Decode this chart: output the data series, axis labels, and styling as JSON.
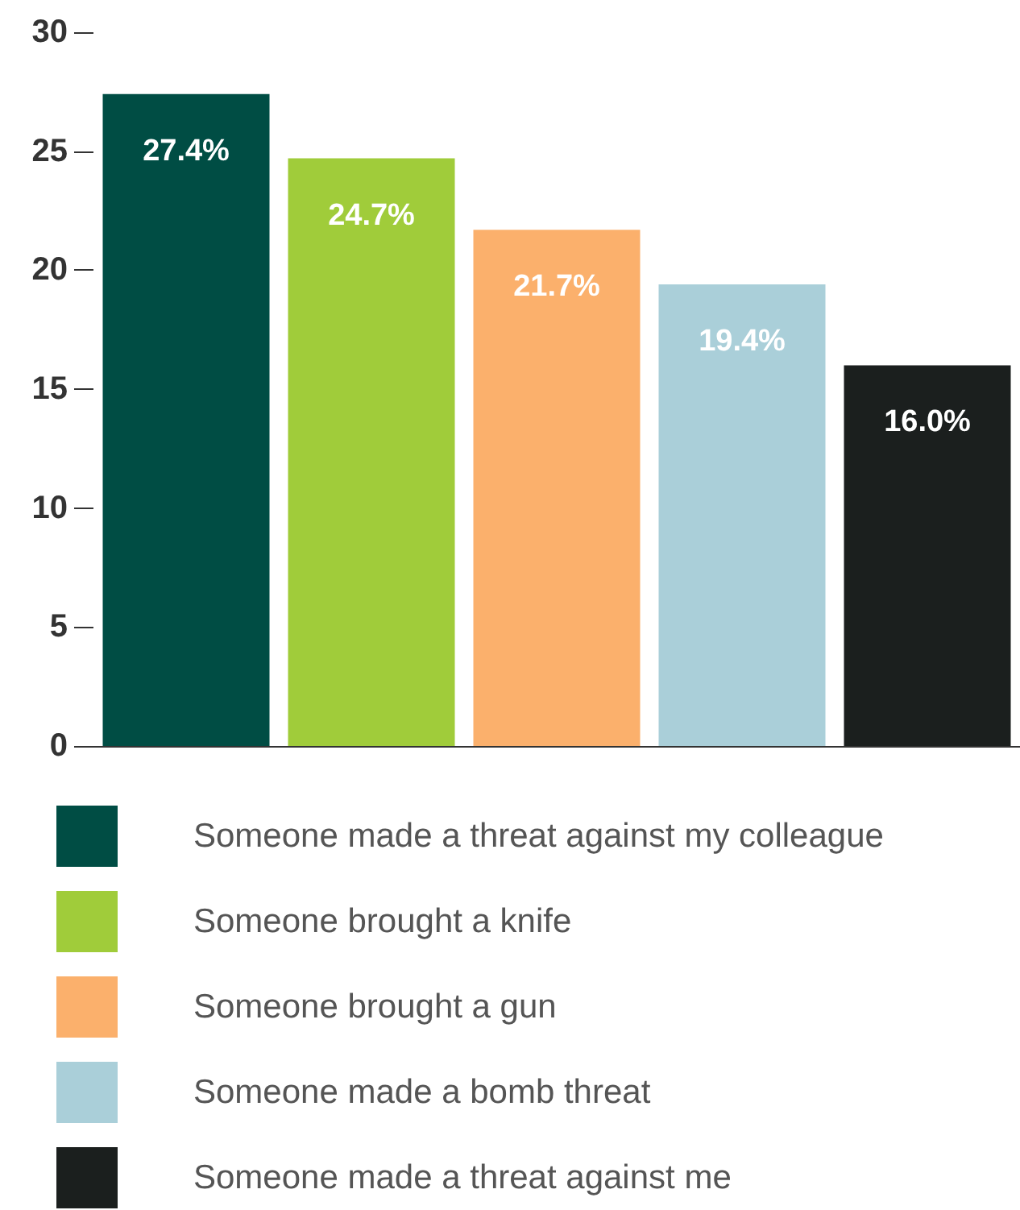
{
  "chart_data": {
    "type": "bar",
    "categories": [
      null,
      null,
      null,
      null,
      null
    ],
    "series": [
      {
        "name": "Someone made a threat against my colleague",
        "color": "#004d44",
        "values": [
          27.4,
          null,
          null,
          null,
          null
        ]
      },
      {
        "name": "Someone brought a knife",
        "color": "#a0cc3a",
        "values": [
          null,
          24.7,
          null,
          null,
          null
        ]
      },
      {
        "name": "Someone brought a gun",
        "color": "#fbb06c",
        "values": [
          null,
          null,
          21.7,
          null,
          null
        ]
      },
      {
        "name": "Someone made a bomb threat",
        "color": "#aacfd9",
        "values": [
          null,
          null,
          null,
          19.4,
          null
        ]
      },
      {
        "name": "Someone made a threat against me",
        "color": "#1b1f1e",
        "values": [
          null,
          null,
          null,
          null,
          16.0
        ]
      }
    ],
    "value_labels": [
      "27.4%",
      "24.7%",
      "21.7%",
      "19.4%",
      "16.0%"
    ],
    "ylim": [
      0,
      30
    ],
    "yticks": [
      0,
      5,
      10,
      15,
      20,
      25,
      30
    ],
    "grid": false,
    "legend": "bottom",
    "tick_labels": "y"
  }
}
